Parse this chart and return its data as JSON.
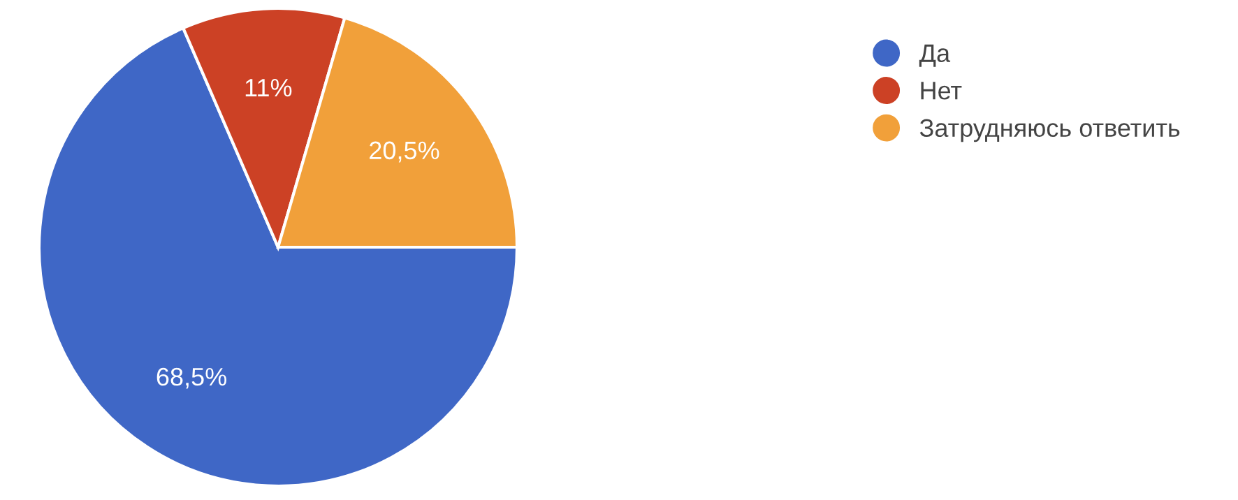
{
  "chart_data": {
    "type": "pie",
    "categories": [
      "Да",
      "Нет",
      "Затрудняюсь ответить"
    ],
    "values": [
      68.5,
      11,
      20.5
    ],
    "value_labels": [
      "68,5%",
      "11%",
      "20,5%"
    ],
    "colors": [
      "#3f67c6",
      "#cc4125",
      "#f1a03a"
    ],
    "legend": "right"
  }
}
